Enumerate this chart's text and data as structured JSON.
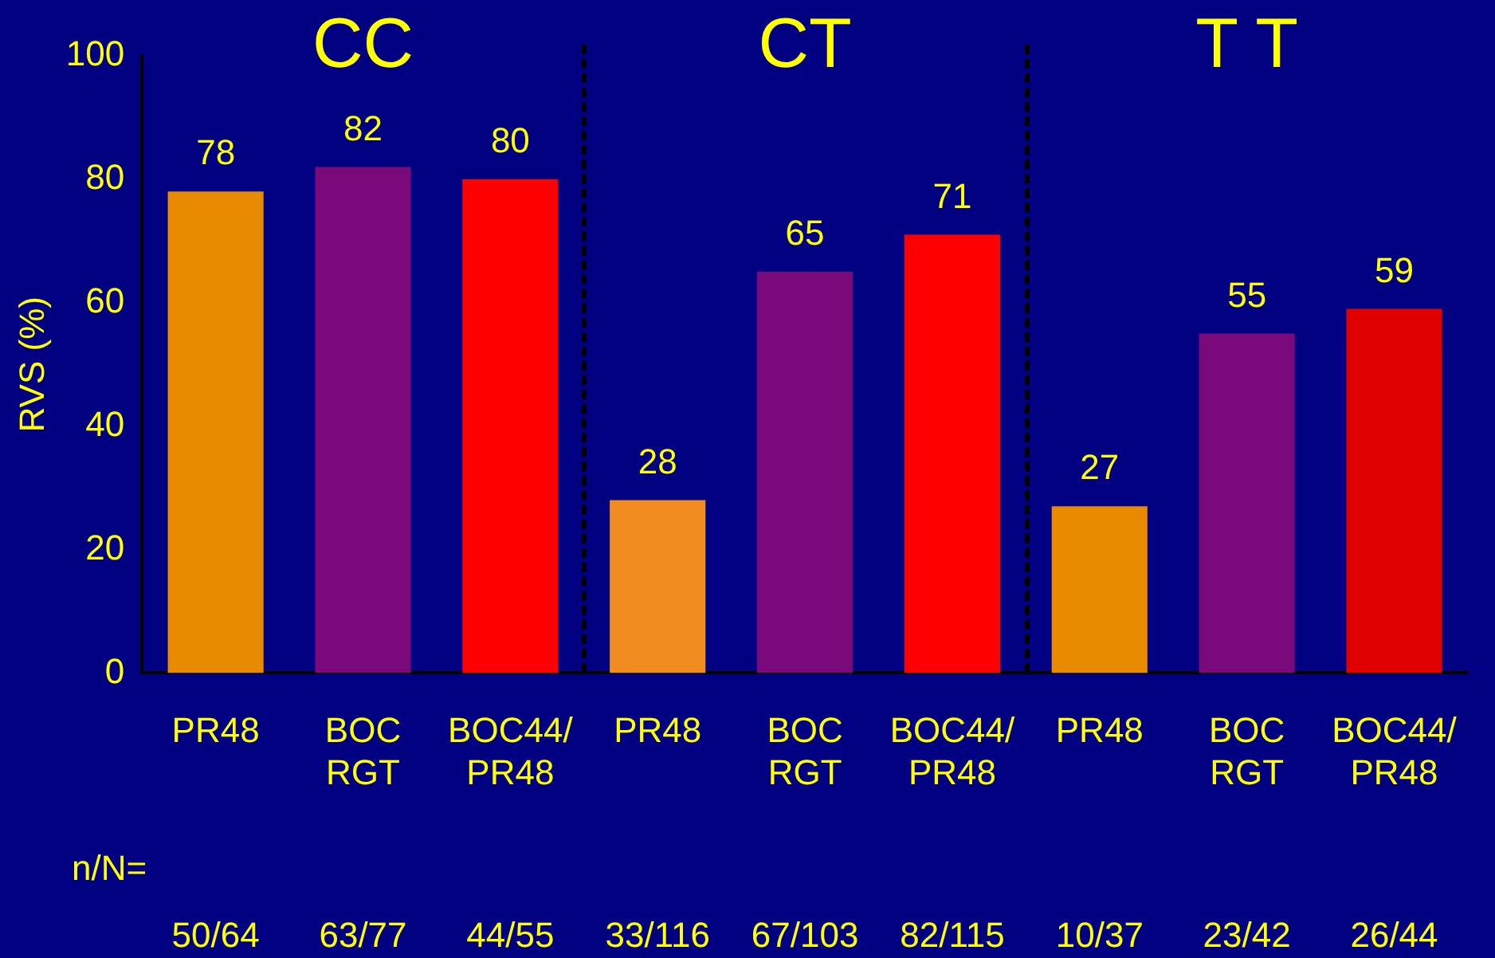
{
  "chart_data": {
    "type": "bar",
    "ylabel": "RVS (%)",
    "categories": [
      "PR48",
      "BOC\nRGT",
      "BOC44/\nPR48",
      "PR48",
      "BOC\nRGT",
      "BOC44/\nPR48",
      "PR48",
      "BOC\nRGT",
      "BOC44/\nPR48"
    ],
    "values": [
      78,
      82,
      80,
      28,
      65,
      71,
      27,
      55,
      59
    ],
    "colors": [
      "#e88a00",
      "#7a0a7a",
      "#ff0000",
      "#f08c20",
      "#7a0a7a",
      "#ff0000",
      "#e88a00",
      "#7a0a7a",
      "#e00000"
    ],
    "ylim": [
      0,
      100
    ],
    "yticks": [
      0,
      20,
      40,
      60,
      80,
      100
    ],
    "grid": false,
    "legend": false,
    "data_labels": true,
    "annotations": [
      "CC",
      "CT",
      "T T",
      "n/N=",
      "50/64",
      "63/77",
      "44/55",
      "33/116",
      "67/103",
      "82/115",
      "10/37",
      "23/42",
      "26/44"
    ]
  }
}
